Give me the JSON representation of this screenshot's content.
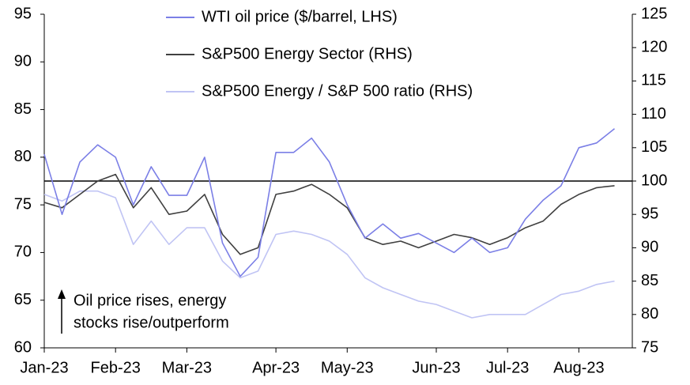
{
  "chart_data": {
    "type": "line",
    "categories": [
      "Jan-23",
      null,
      null,
      null,
      "Feb-23",
      null,
      null,
      null,
      "Mar-23",
      null,
      null,
      null,
      null,
      "Apr-23",
      null,
      null,
      null,
      "May-23",
      null,
      null,
      null,
      null,
      "Jun-23",
      null,
      null,
      null,
      "Jul-23",
      null,
      null,
      null,
      "Aug-23",
      null,
      null,
      null
    ],
    "series": [
      {
        "name": "WTI oil price ($/barrel, LHS)",
        "color": "#7b7fe6",
        "axis": "y",
        "values": [
          80.3,
          74,
          79.5,
          81.3,
          80,
          75,
          79,
          76,
          76,
          80,
          71,
          67.5,
          69.5,
          80.5,
          80.5,
          82,
          79.5,
          75,
          71.5,
          73,
          71.5,
          72,
          71,
          70,
          71.5,
          70,
          70.5,
          73.5,
          75.5,
          77,
          81,
          81.5,
          83,
          null
        ]
      },
      {
        "name": "S&P500 Energy Sector (RHS)",
        "color": "#404040",
        "axis": "y2",
        "values": [
          96.8,
          96,
          98,
          100,
          101,
          96,
          99,
          95,
          95.5,
          98,
          92,
          89,
          90,
          98,
          98.5,
          99.5,
          98,
          96,
          91.5,
          90.5,
          91,
          90,
          91,
          92,
          91.5,
          90.5,
          91.5,
          93,
          94,
          96.5,
          98,
          99,
          99.3,
          null
        ]
      },
      {
        "name": "S&P500 Energy / S&P 500 ratio (RHS)",
        "color": "#c0c4f4",
        "axis": "y2",
        "values": [
          98,
          97,
          98.5,
          98.5,
          97.5,
          90.5,
          94,
          90.5,
          93,
          93,
          88,
          85.5,
          86.5,
          92,
          92.5,
          92,
          91,
          89,
          85.5,
          84,
          83,
          82,
          81.5,
          80.5,
          79.5,
          80,
          80,
          80,
          81.5,
          83,
          83.5,
          84.5,
          85,
          null
        ]
      }
    ],
    "ylim": [
      60,
      95
    ],
    "yticks": [
      60,
      65,
      70,
      75,
      80,
      85,
      90,
      95
    ],
    "y2lim": [
      75,
      125
    ],
    "y2ticks": [
      75,
      80,
      85,
      90,
      95,
      100,
      105,
      110,
      115,
      120,
      125
    ],
    "reference_line_y2": 100,
    "annotation": [
      "Oil price rises, energy",
      "stocks rise/outperform"
    ]
  }
}
